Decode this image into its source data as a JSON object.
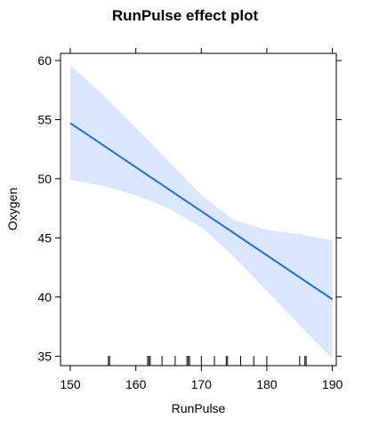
{
  "chart_data": {
    "type": "line",
    "title": "RunPulse effect plot",
    "xlabel": "RunPulse",
    "ylabel": "Oxygen",
    "xlim": [
      148.5,
      190.6
    ],
    "ylim": [
      34.2,
      60.6
    ],
    "x_ticks": [
      150,
      160,
      170,
      180,
      190
    ],
    "y_ticks": [
      35,
      40,
      45,
      50,
      55,
      60
    ],
    "series": [
      {
        "x": [
          150,
          190
        ],
        "y": [
          54.7,
          39.8
        ]
      }
    ],
    "confidence_band": {
      "x": [
        150,
        155,
        160,
        165,
        170,
        175,
        180,
        185,
        190
      ],
      "lower": [
        49.9,
        49.4,
        48.6,
        47.5,
        45.9,
        43.4,
        40.5,
        37.6,
        34.8
      ],
      "upper": [
        59.6,
        57.1,
        54.3,
        51.5,
        48.6,
        46.5,
        45.7,
        45.3,
        44.8
      ]
    },
    "rug": [
      155.8,
      156,
      161.8,
      162,
      162.2,
      164,
      166,
      167.8,
      168,
      168.2,
      170,
      172,
      173.8,
      174,
      176,
      178,
      180,
      185,
      185.8,
      186
    ],
    "colors": {
      "line": "#1f6fe6",
      "band": "#dbe6ff"
    },
    "grid": false
  }
}
